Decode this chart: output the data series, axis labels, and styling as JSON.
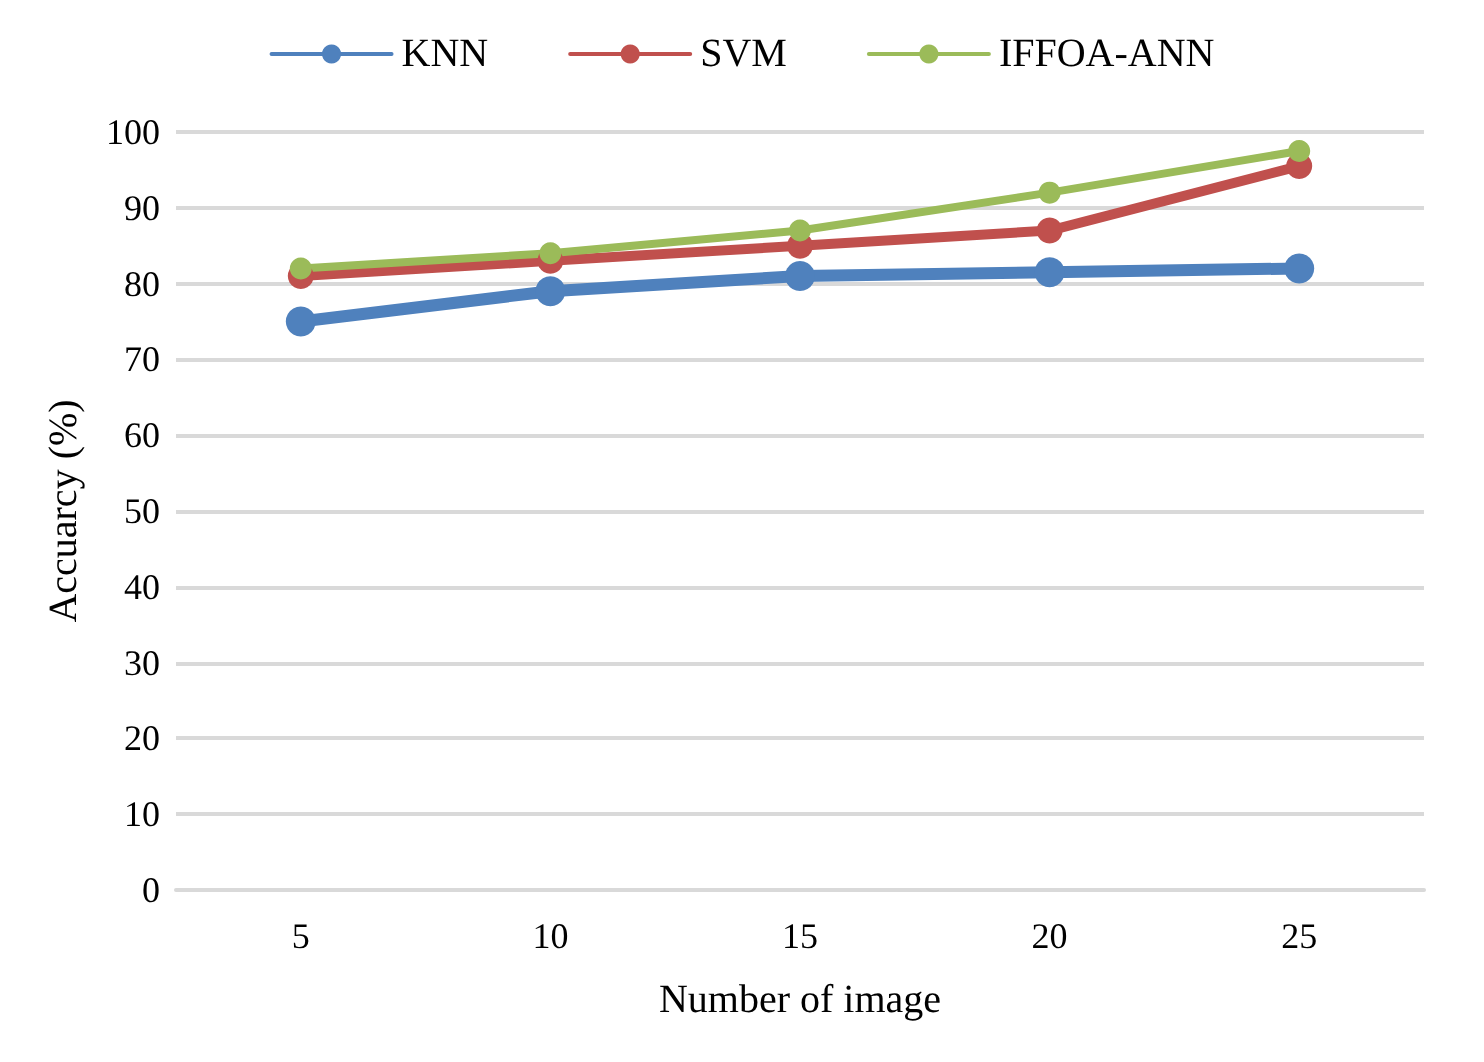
{
  "chart_data": {
    "type": "line",
    "xlabel": "Number of image",
    "ylabel": "Accuarcy (%)",
    "categories": [
      "5",
      "10",
      "15",
      "20",
      "25"
    ],
    "series": [
      {
        "name": "KNN",
        "color": "#4f81bd",
        "values": [
          75,
          79,
          81,
          81.5,
          82
        ]
      },
      {
        "name": "SVM",
        "color": "#c0504d",
        "values": [
          81,
          83,
          85,
          87,
          95.5
        ]
      },
      {
        "name": "IFFOA-ANN",
        "color": "#9bbb59",
        "values": [
          82,
          84,
          87,
          92,
          97.5
        ]
      }
    ],
    "ylim": [
      0,
      100
    ],
    "yticks": [
      0,
      10,
      20,
      30,
      40,
      50,
      60,
      70,
      80,
      90,
      100
    ],
    "grid": "y",
    "legend": "top",
    "marker": "circle",
    "line_style": "solid"
  }
}
